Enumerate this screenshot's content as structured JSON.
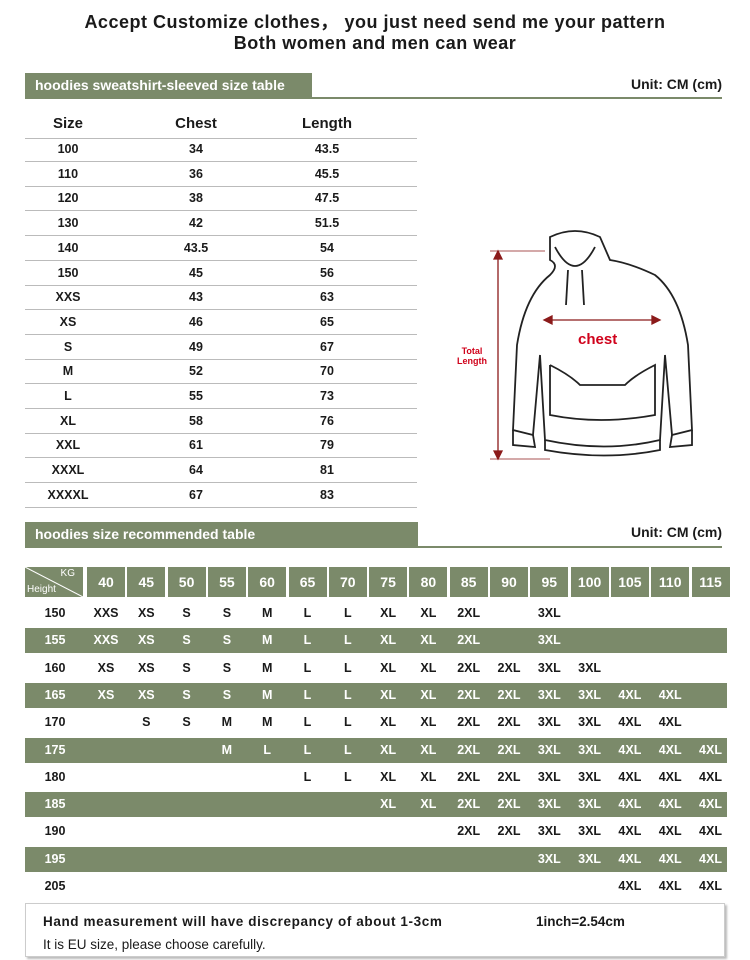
{
  "header": {
    "line1": "Accept Customize clothes，  you just need send me your pattern",
    "line2": "Both women and men can wear"
  },
  "size_table": {
    "title": "hoodies sweatshirt-sleeved size table",
    "unit": "Unit: CM (cm)",
    "columns": [
      "Size",
      "Chest",
      "Length"
    ],
    "rows": [
      [
        "100",
        "34",
        "43.5"
      ],
      [
        "110",
        "36",
        "45.5"
      ],
      [
        "120",
        "38",
        "47.5"
      ],
      [
        "130",
        "42",
        "51.5"
      ],
      [
        "140",
        "43.5",
        "54"
      ],
      [
        "150",
        "45",
        "56"
      ],
      [
        "XXS",
        "43",
        "63"
      ],
      [
        "XS",
        "46",
        "65"
      ],
      [
        "S",
        "49",
        "67"
      ],
      [
        "M",
        "52",
        "70"
      ],
      [
        "L",
        "55",
        "73"
      ],
      [
        "XL",
        "58",
        "76"
      ],
      [
        "XXL",
        "61",
        "79"
      ],
      [
        "XXXL",
        "64",
        "81"
      ],
      [
        "XXXXL",
        "67",
        "83"
      ]
    ]
  },
  "diagram": {
    "chest_label": "chest",
    "length_label_1": "Total",
    "length_label_2": "Length"
  },
  "recommend_table": {
    "title": "hoodies size recommended table",
    "unit": "Unit: CM (cm)",
    "corner_top": "KG",
    "corner_bottom": "Height",
    "weights": [
      "40",
      "45",
      "50",
      "55",
      "60",
      "65",
      "70",
      "75",
      "80",
      "85",
      "90",
      "95",
      "100",
      "105",
      "110",
      "115"
    ],
    "rows": [
      {
        "height": "150",
        "sizes": [
          "XXS",
          "XS",
          "S",
          "S",
          "M",
          "L",
          "L",
          "XL",
          "XL",
          "2XL",
          "",
          "3XL",
          "",
          "",
          "",
          ""
        ]
      },
      {
        "height": "155",
        "sizes": [
          "XXS",
          "XS",
          "S",
          "S",
          "M",
          "L",
          "L",
          "XL",
          "XL",
          "2XL",
          "",
          "3XL",
          "",
          "",
          "",
          ""
        ]
      },
      {
        "height": "160",
        "sizes": [
          "XS",
          "XS",
          "S",
          "S",
          "M",
          "L",
          "L",
          "XL",
          "XL",
          "2XL",
          "2XL",
          "3XL",
          "3XL",
          "",
          "",
          ""
        ]
      },
      {
        "height": "165",
        "sizes": [
          "XS",
          "XS",
          "S",
          "S",
          "M",
          "L",
          "L",
          "XL",
          "XL",
          "2XL",
          "2XL",
          "3XL",
          "3XL",
          "4XL",
          "4XL",
          ""
        ]
      },
      {
        "height": "170",
        "sizes": [
          "",
          "S",
          "S",
          "M",
          "M",
          "L",
          "L",
          "XL",
          "XL",
          "2XL",
          "2XL",
          "3XL",
          "3XL",
          "4XL",
          "4XL",
          ""
        ]
      },
      {
        "height": "175",
        "sizes": [
          "",
          "",
          "",
          "M",
          "L",
          "L",
          "L",
          "XL",
          "XL",
          "2XL",
          "2XL",
          "3XL",
          "3XL",
          "4XL",
          "4XL",
          "4XL"
        ]
      },
      {
        "height": "180",
        "sizes": [
          "",
          "",
          "",
          "",
          "",
          "L",
          "L",
          "XL",
          "XL",
          "2XL",
          "2XL",
          "3XL",
          "3XL",
          "4XL",
          "4XL",
          "4XL"
        ]
      },
      {
        "height": "185",
        "sizes": [
          "",
          "",
          "",
          "",
          "",
          "",
          "",
          "XL",
          "XL",
          "2XL",
          "2XL",
          "3XL",
          "3XL",
          "4XL",
          "4XL",
          "4XL"
        ]
      },
      {
        "height": "190",
        "sizes": [
          "",
          "",
          "",
          "",
          "",
          "",
          "",
          "",
          "",
          "2XL",
          "2XL",
          "3XL",
          "3XL",
          "4XL",
          "4XL",
          "4XL"
        ]
      },
      {
        "height": "195",
        "sizes": [
          "",
          "",
          "",
          "",
          "",
          "",
          "",
          "",
          "",
          "",
          "",
          "3XL",
          "3XL",
          "4XL",
          "4XL",
          "4XL"
        ]
      },
      {
        "height": "205",
        "sizes": [
          "",
          "",
          "",
          "",
          "",
          "",
          "",
          "",
          "",
          "",
          "",
          "",
          "",
          "4XL",
          "4XL",
          "4XL"
        ]
      }
    ]
  },
  "note": {
    "line1": "Hand measurement will have discrepancy of about 1-3cm",
    "conversion": "1inch=2.54cm",
    "line2": "It is EU size, please choose carefully."
  },
  "colors": {
    "accent": "#7b8a6a",
    "red_label": "#d0021b"
  }
}
